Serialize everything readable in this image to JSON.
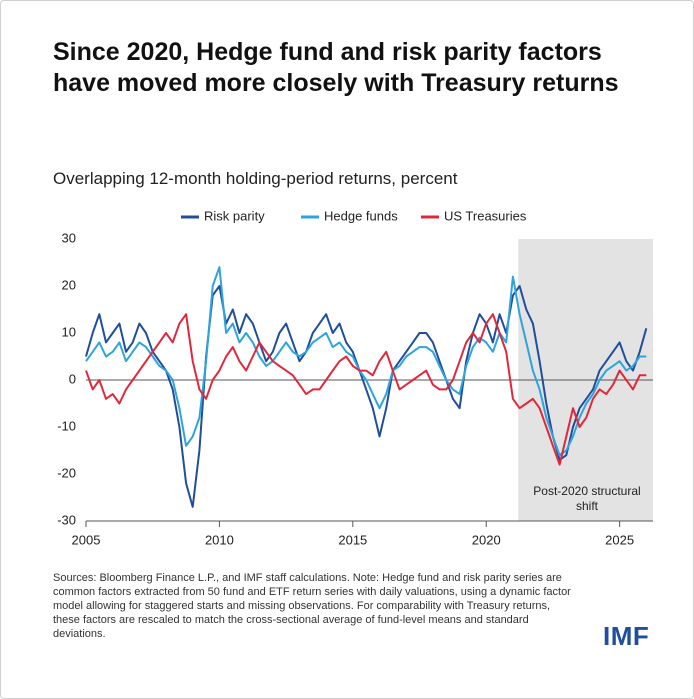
{
  "chart_data": {
    "type": "line",
    "title": "Since 2020, Hedge fund and risk parity factors have moved more closely with Treasury returns",
    "subtitle": "Overlapping 12-month holding-period returns, percent",
    "x": [
      2005,
      2005.25,
      2005.5,
      2005.75,
      2006,
      2006.25,
      2006.5,
      2006.75,
      2007,
      2007.25,
      2007.5,
      2007.75,
      2008,
      2008.25,
      2008.5,
      2008.75,
      2009,
      2009.25,
      2009.5,
      2009.75,
      2010,
      2010.25,
      2010.5,
      2010.75,
      2011,
      2011.25,
      2011.5,
      2011.75,
      2012,
      2012.25,
      2012.5,
      2012.75,
      2013,
      2013.25,
      2013.5,
      2013.75,
      2014,
      2014.25,
      2014.5,
      2014.75,
      2015,
      2015.25,
      2015.5,
      2015.75,
      2016,
      2016.25,
      2016.5,
      2016.75,
      2017,
      2017.25,
      2017.5,
      2017.75,
      2018,
      2018.25,
      2018.5,
      2018.75,
      2019,
      2019.25,
      2019.5,
      2019.75,
      2020,
      2020.25,
      2020.5,
      2020.75,
      2021,
      2021.25,
      2021.5,
      2021.75,
      2022,
      2022.25,
      2022.5,
      2022.75,
      2023,
      2023.25,
      2023.5,
      2023.75,
      2024,
      2024.25,
      2024.5,
      2024.75,
      2025,
      2025.25,
      2025.5,
      2025.75,
      2026
    ],
    "series": [
      {
        "name": "Risk parity",
        "color": "#1f4e9c",
        "values": [
          5,
          10,
          14,
          8,
          10,
          12,
          6,
          8,
          12,
          10,
          6,
          4,
          2,
          -2,
          -10,
          -22,
          -27,
          -15,
          5,
          18,
          20,
          12,
          15,
          10,
          14,
          12,
          8,
          4,
          6,
          10,
          12,
          8,
          4,
          6,
          10,
          12,
          14,
          10,
          12,
          8,
          6,
          2,
          -2,
          -6,
          -12,
          -6,
          2,
          4,
          6,
          8,
          10,
          10,
          8,
          4,
          0,
          -4,
          -6,
          4,
          10,
          14,
          12,
          8,
          14,
          10,
          18,
          20,
          15,
          12,
          4,
          -5,
          -12,
          -17,
          -16,
          -10,
          -6,
          -4,
          -2,
          2,
          4,
          6,
          8,
          4,
          2,
          6,
          11
        ]
      },
      {
        "name": "Hedge funds",
        "color": "#2ea3dc",
        "values": [
          4,
          6,
          8,
          5,
          6,
          8,
          4,
          6,
          8,
          7,
          5,
          3,
          2,
          0,
          -6,
          -14,
          -12,
          -8,
          4,
          20,
          24,
          10,
          12,
          8,
          10,
          8,
          5,
          3,
          4,
          6,
          8,
          6,
          5,
          6,
          8,
          9,
          10,
          7,
          8,
          6,
          5,
          2,
          0,
          -3,
          -6,
          -3,
          2,
          3,
          5,
          6,
          7,
          7,
          6,
          3,
          0,
          -2,
          -3,
          3,
          7,
          9,
          8,
          6,
          10,
          8,
          22,
          14,
          8,
          2,
          -2,
          -8,
          -12,
          -16,
          -15,
          -12,
          -8,
          -5,
          -3,
          0,
          2,
          3,
          4,
          2,
          3,
          5,
          5
        ]
      },
      {
        "name": "US Treasuries",
        "color": "#e0283c",
        "values": [
          2,
          -2,
          0,
          -4,
          -3,
          -5,
          -2,
          0,
          2,
          4,
          6,
          8,
          10,
          8,
          12,
          14,
          4,
          -2,
          -4,
          0,
          2,
          5,
          7,
          4,
          2,
          5,
          8,
          6,
          4,
          3,
          2,
          1,
          -1,
          -3,
          -2,
          -2,
          0,
          2,
          4,
          5,
          3,
          2,
          2,
          1,
          4,
          6,
          2,
          -2,
          -1,
          0,
          1,
          2,
          -1,
          -2,
          -2,
          0,
          4,
          8,
          10,
          8,
          12,
          14,
          10,
          6,
          -4,
          -6,
          -5,
          -4,
          -6,
          -10,
          -14,
          -18,
          -12,
          -6,
          -10,
          -8,
          -4,
          -2,
          -3,
          -1,
          2,
          0,
          -2,
          1,
          1
        ]
      }
    ],
    "xlim": [
      2005,
      2026.25
    ],
    "xticks": [
      2005,
      2010,
      2015,
      2020,
      2025
    ],
    "ylim": [
      -30,
      30
    ],
    "yticks": [
      -30,
      -20,
      -10,
      0,
      10,
      20,
      30
    ],
    "shade": {
      "range": [
        2021.2,
        2026.25
      ],
      "label": "Post-2020 structural shift",
      "color": "#e3e3e3"
    },
    "note": "Sources: Bloomberg Finance L.P., and IMF staff calculations. Note: Hedge fund and risk parity series are common factors extracted from 50 fund and ETF return series with daily valuations, using a dynamic factor model allowing for staggered starts and missing observations. For comparability with Treasury returns, these factors are rescaled to match the cross-sectional average of fund-level means and standard deviations.",
    "logo": "IMF"
  }
}
